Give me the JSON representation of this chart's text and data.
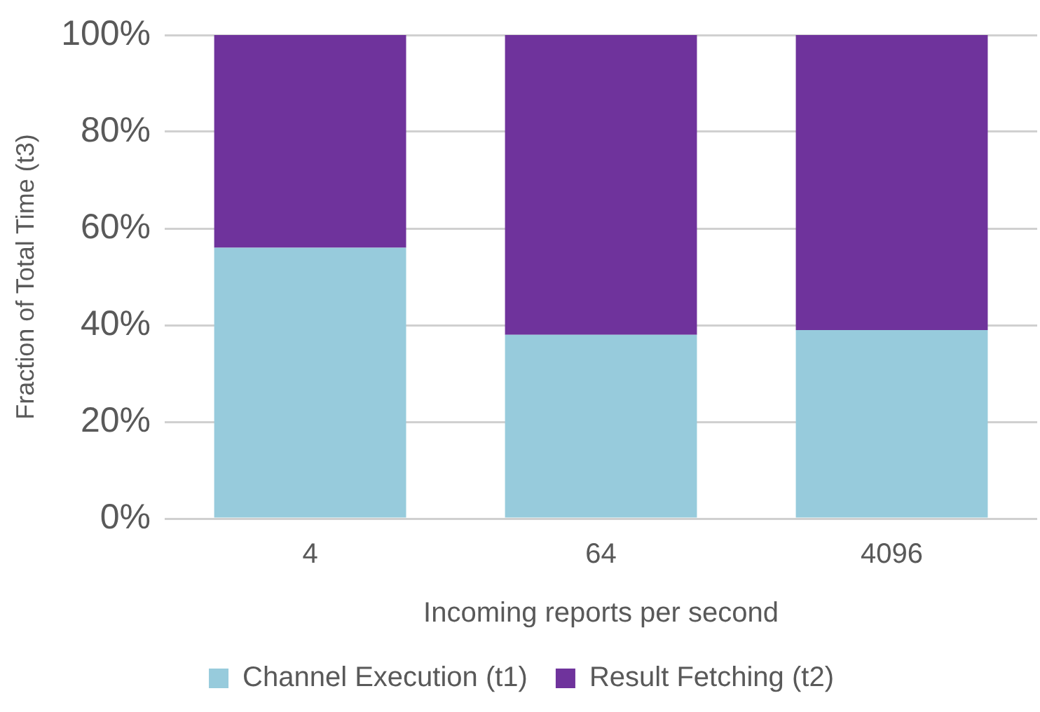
{
  "chart_data": {
    "type": "bar",
    "stacked": true,
    "xlabel": "Incoming reports per second",
    "ylabel": "Fraction of Total Time (t3)",
    "categories": [
      "4",
      "64",
      "4096"
    ],
    "series": [
      {
        "name": "Channel Execution (t1)",
        "color": "#97cbdc",
        "values": [
          56,
          38,
          39
        ]
      },
      {
        "name": "Result Fetching (t2)",
        "color": "#6f339c",
        "values": [
          44,
          62,
          61
        ]
      }
    ],
    "ylim": [
      0,
      100
    ],
    "yticks": [
      {
        "value": 0,
        "label": "0%"
      },
      {
        "value": 20,
        "label": "20%"
      },
      {
        "value": 40,
        "label": "40%"
      },
      {
        "value": 60,
        "label": "60%"
      },
      {
        "value": 80,
        "label": "80%"
      },
      {
        "value": 100,
        "label": "100%"
      }
    ],
    "grid": "y",
    "legend": "bottom"
  }
}
